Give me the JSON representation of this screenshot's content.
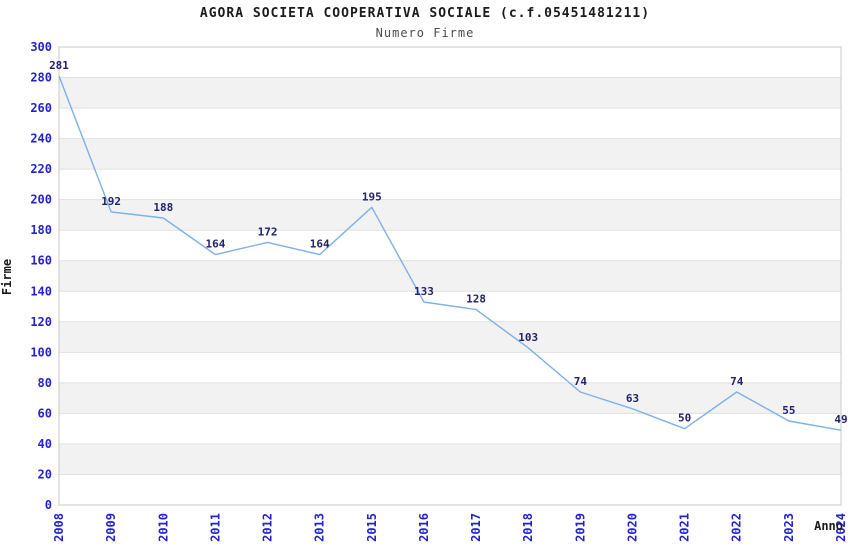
{
  "chart_data": {
    "type": "line",
    "title": "AGORA SOCIETA COOPERATIVA SOCIALE (c.f.05451481211)",
    "subtitle": "Numero Firme",
    "xlabel": "Anno",
    "ylabel": "Firme",
    "categories": [
      "2008",
      "2009",
      "2010",
      "2011",
      "2012",
      "2013",
      "2015",
      "2016",
      "2017",
      "2018",
      "2019",
      "2020",
      "2021",
      "2022",
      "2023",
      "2024"
    ],
    "values": [
      281,
      192,
      188,
      164,
      172,
      164,
      195,
      133,
      128,
      103,
      74,
      63,
      50,
      74,
      55,
      49
    ],
    "ylim": [
      0,
      300
    ],
    "ytick_step": 20,
    "grid": true,
    "legend": "none",
    "colors": {
      "line": "#7EB1E7",
      "point_label": "#22226B",
      "tick_label": "#2323CC",
      "band_alt": "#F2F2F2",
      "band": "#FFFFFF",
      "gridline": "#E0E0E0",
      "plot_border": "#C9C9C9",
      "title": "#1A1A1A",
      "subtitle": "#4D4D4D",
      "axis_title": "#1A1A1A"
    }
  }
}
